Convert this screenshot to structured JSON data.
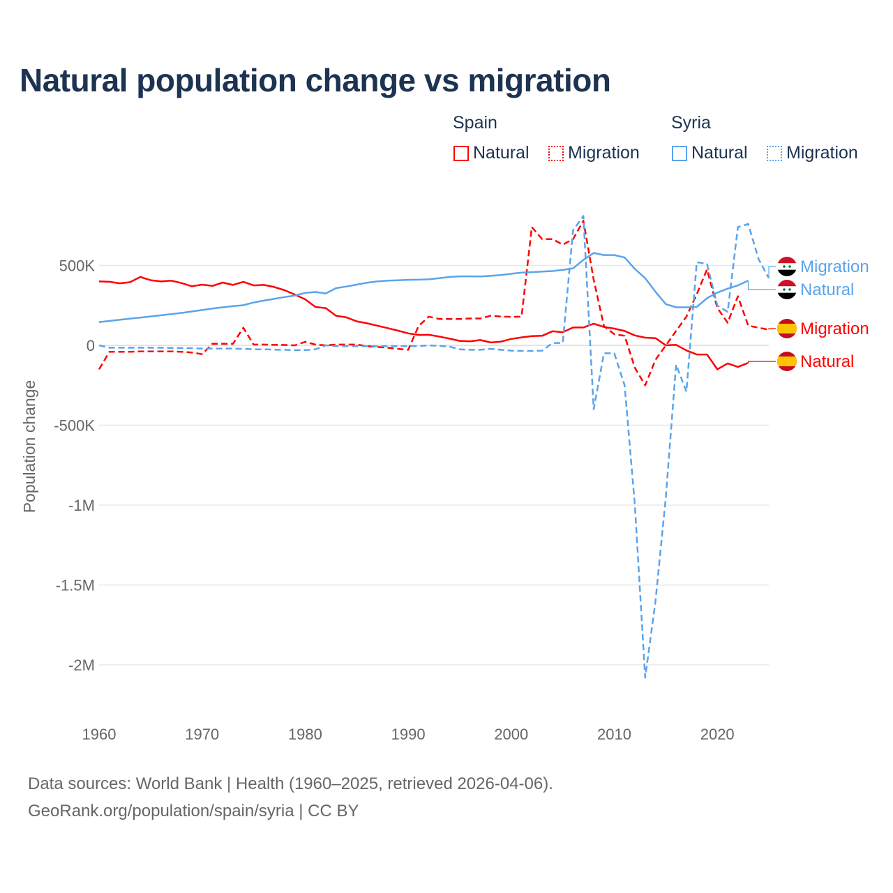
{
  "title": "Natural population change vs migration",
  "legend": {
    "groups": [
      {
        "name": "Spain",
        "items": [
          {
            "label": "Natural",
            "style": "solid",
            "color": "#ff0000"
          },
          {
            "label": "Migration",
            "style": "dotted",
            "color": "#ff0000"
          }
        ]
      },
      {
        "name": "Syria",
        "items": [
          {
            "label": "Natural",
            "style": "solid",
            "color": "#5ba4ea"
          },
          {
            "label": "Migration",
            "style": "dotted",
            "color": "#5ba4ea"
          }
        ]
      }
    ]
  },
  "footer": {
    "line1": "Data sources: World Bank | Health (1960–2025, retrieved 2026-04-06).",
    "line2": "GeoRank.org/population/spain/syria | CC BY"
  },
  "chart_data": {
    "type": "line",
    "title": "Natural population change vs migration",
    "xlabel": "",
    "ylabel": "Population change",
    "xlim": [
      1960,
      2025
    ],
    "ylim": [
      -2250000,
      850000
    ],
    "x_ticks": [
      1960,
      1970,
      1980,
      1990,
      2000,
      2010,
      2020
    ],
    "x_tick_labels": [
      "1960",
      "1970",
      "1980",
      "1990",
      "2000",
      "2010",
      "2020"
    ],
    "y_ticks": [
      500000,
      0,
      -500000,
      -1000000,
      -1500000,
      -2000000
    ],
    "y_tick_labels": [
      "500K",
      "0",
      "-500K",
      "-1M",
      "-1.5M",
      "-2M"
    ],
    "grid": true,
    "legend_position": "top-right",
    "start_year": 1960,
    "series": [
      {
        "name": "Spain Natural",
        "label": "Natural",
        "country": "Spain",
        "color": "#ff0000",
        "dash": false,
        "values_k": [
          400,
          398,
          388,
          395,
          428,
          408,
          400,
          405,
          390,
          370,
          380,
          372,
          393,
          378,
          398,
          375,
          378,
          365,
          345,
          318,
          288,
          240,
          233,
          185,
          175,
          150,
          138,
          123,
          108,
          92,
          75,
          65,
          66,
          55,
          42,
          28,
          25,
          33,
          18,
          23,
          40,
          50,
          58,
          60,
          88,
          82,
          112,
          112,
          136,
          115,
          105,
          90,
          62,
          48,
          45,
          0,
          3,
          -32,
          -57,
          -57,
          -150,
          -113,
          -135,
          -110
        ]
      },
      {
        "name": "Spain Migration",
        "label": "Migration",
        "country": "Spain",
        "color": "#ff0000",
        "dash": true,
        "values_k": [
          -150,
          -40,
          -40,
          -40,
          -38,
          -38,
          -38,
          -38,
          -40,
          -45,
          -55,
          10,
          10,
          10,
          110,
          5,
          5,
          3,
          2,
          0,
          22,
          5,
          0,
          5,
          5,
          5,
          -5,
          -10,
          -15,
          -22,
          -28,
          120,
          180,
          165,
          165,
          165,
          168,
          168,
          185,
          180,
          178,
          180,
          740,
          665,
          665,
          630,
          665,
          780,
          410,
          120,
          70,
          60,
          -140,
          -250,
          -90,
          0,
          90,
          180,
          320,
          475,
          234,
          142,
          307,
          123,
          110,
          98
        ]
      },
      {
        "name": "Syria Natural",
        "label": "Natural",
        "country": "Syria",
        "color": "#5ba4ea",
        "dash": false,
        "values_k": [
          145,
          153,
          160,
          167,
          174,
          181,
          188,
          195,
          203,
          212,
          221,
          230,
          238,
          246,
          251,
          268,
          280,
          291,
          302,
          312,
          328,
          334,
          325,
          358,
          368,
          380,
          392,
          400,
          405,
          407,
          410,
          411,
          413,
          420,
          428,
          432,
          432,
          431,
          435,
          440,
          448,
          455,
          458,
          462,
          465,
          472,
          482,
          535,
          578,
          565,
          565,
          550,
          478,
          420,
          335,
          258,
          238,
          238,
          240,
          295,
          330,
          355,
          375,
          405
        ]
      },
      {
        "name": "Syria Migration",
        "label": "Migration",
        "country": "Syria",
        "color": "#5ba4ea",
        "dash": true,
        "values_k": [
          0,
          -15,
          -15,
          -15,
          -15,
          -15,
          -15,
          -16,
          -17,
          -18,
          -20,
          -20,
          -20,
          -20,
          -22,
          -25,
          -25,
          -27,
          -28,
          -30,
          -30,
          -25,
          0,
          -5,
          -5,
          -5,
          -5,
          -5,
          -5,
          -5,
          -5,
          -5,
          0,
          -3,
          -8,
          -25,
          -28,
          -28,
          -22,
          -28,
          -33,
          -35,
          -35,
          -33,
          15,
          15,
          720,
          810,
          -400,
          -50,
          -50,
          -250,
          -1000,
          -2080,
          -1600,
          -950,
          -120,
          -290,
          520,
          510,
          250,
          210,
          740,
          760,
          540,
          420
        ]
      }
    ],
    "end_labels": [
      {
        "text": "Migration",
        "country": "Syria",
        "color": "#5ba4ea"
      },
      {
        "text": "Natural",
        "country": "Syria",
        "color": "#5ba4ea"
      },
      {
        "text": "Migration",
        "country": "Spain",
        "color": "#ff0000"
      },
      {
        "text": "Natural",
        "country": "Spain",
        "color": "#ff0000"
      }
    ]
  }
}
